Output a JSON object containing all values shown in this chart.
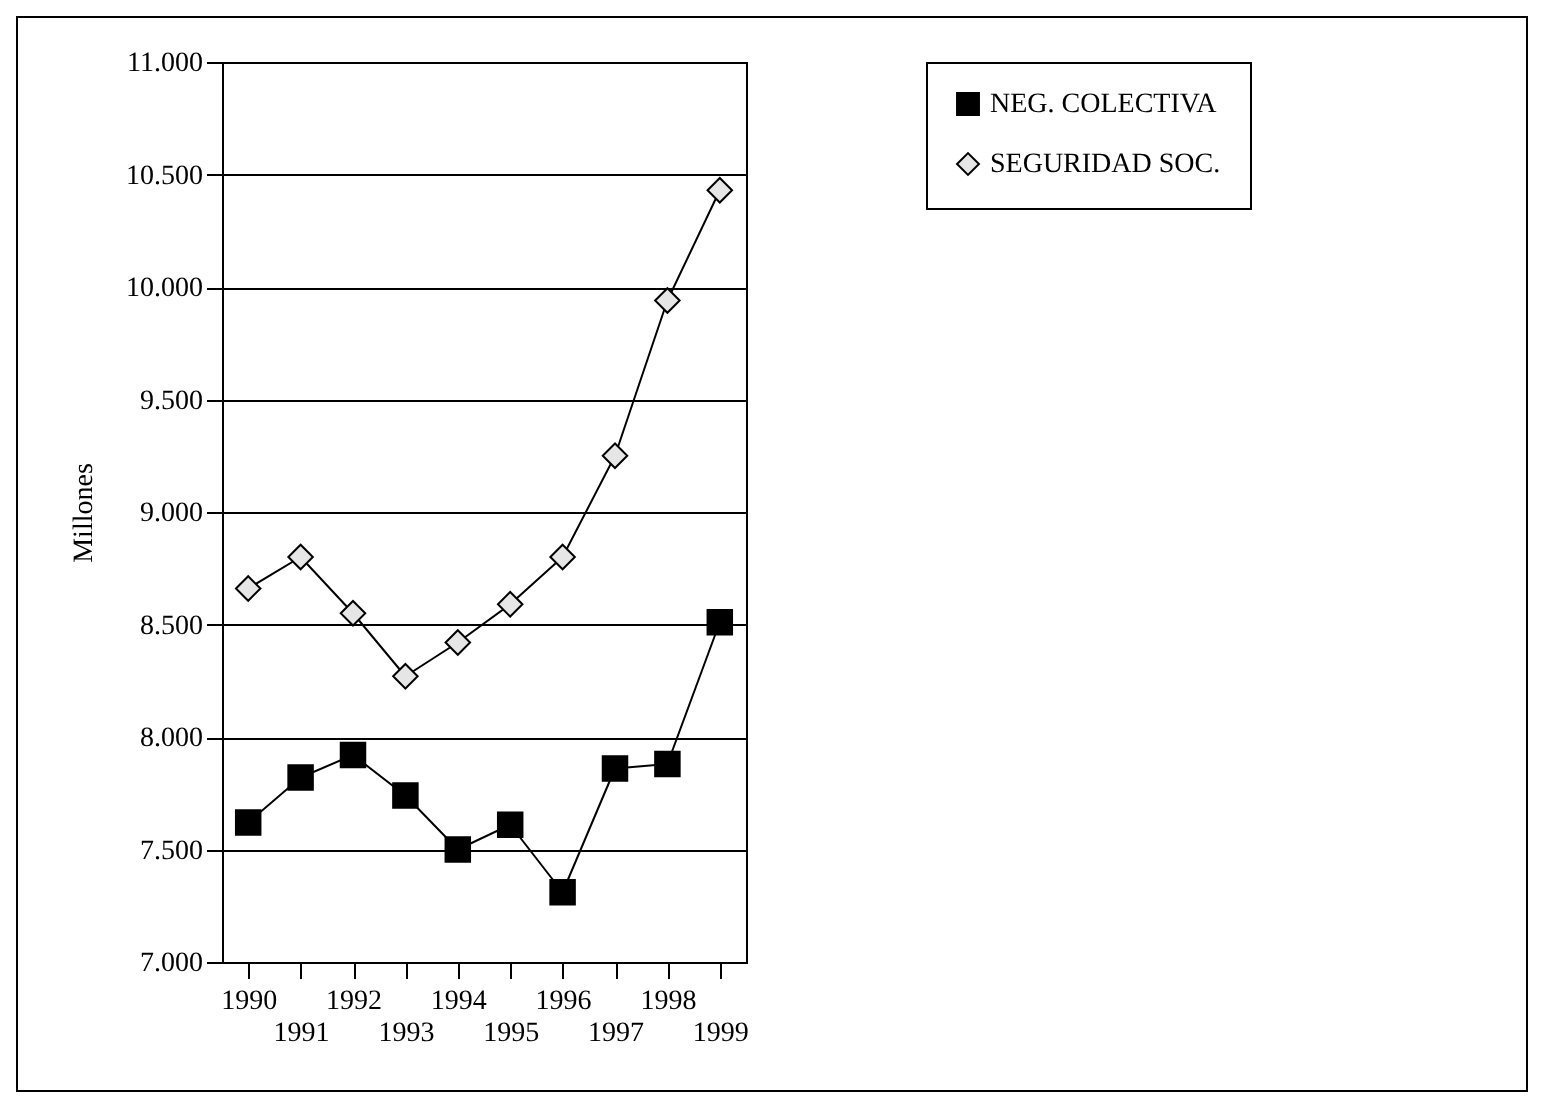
{
  "chart_data": {
    "type": "line",
    "ylabel": "Millones",
    "categories": [
      "1990",
      "1991",
      "1992",
      "1993",
      "1994",
      "1995",
      "1996",
      "1997",
      "1998",
      "1999"
    ],
    "series": [
      {
        "name": "NEG. COLECTIVA",
        "color": "#000000",
        "marker": "square",
        "values": [
          7620,
          7820,
          7920,
          7740,
          7500,
          7610,
          7310,
          7860,
          7880,
          8510
        ]
      },
      {
        "name": "SEGURIDAD SOC.",
        "color": "#e6e6e6",
        "marker": "diamond",
        "values": [
          8660,
          8800,
          8550,
          8270,
          8420,
          8590,
          8800,
          9250,
          9940,
          10430
        ]
      }
    ],
    "ylim": [
      7000,
      11000
    ],
    "yticks": [
      {
        "value": 7000,
        "label": "7.000"
      },
      {
        "value": 7500,
        "label": "7.500"
      },
      {
        "value": 8000,
        "label": "8.000"
      },
      {
        "value": 8500,
        "label": "8.500"
      },
      {
        "value": 9000,
        "label": "9.000"
      },
      {
        "value": 9500,
        "label": "9.500"
      },
      {
        "value": 10000,
        "label": "10.000"
      },
      {
        "value": 10500,
        "label": "10.500"
      },
      {
        "value": 11000,
        "label": "11.000"
      }
    ],
    "grid": "y",
    "legend": "right",
    "line_style": "solid"
  }
}
